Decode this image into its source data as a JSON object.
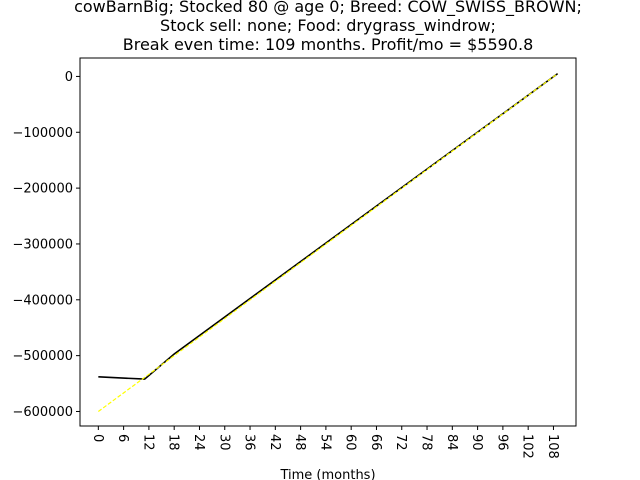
{
  "chart_data": {
    "type": "line",
    "title_lines": [
      "cowBarnBig; Stocked 80 @ age 0; Breed: COW_SWISS_BROWN;",
      "Stock sell: none; Food: drygrass_windrow;",
      "Break even time: 109 months. Profit/mo = $5590.8"
    ],
    "xlabel": "Time (months)",
    "ylabel": "",
    "xlim": [
      -4.35,
      113.35
    ],
    "ylim": [
      -626000,
      33000
    ],
    "x_ticks": [
      0,
      6,
      12,
      18,
      24,
      30,
      36,
      42,
      48,
      54,
      60,
      66,
      72,
      78,
      84,
      90,
      96,
      102,
      108
    ],
    "y_ticks": [
      0,
      -100000,
      -200000,
      -300000,
      -400000,
      -500000,
      -600000
    ],
    "y_tick_labels": [
      "0",
      "−100000",
      "−200000",
      "−300000",
      "−400000",
      "−500000",
      "−600000"
    ],
    "grid": false,
    "series": [
      {
        "color": "#000000",
        "style": "solid",
        "x": [
          0,
          11,
          18,
          109
        ],
        "y": [
          -538000,
          -542000,
          -497000,
          5000
        ]
      },
      {
        "color": "#ffff00",
        "style": "dashed",
        "x": [
          0,
          109
        ],
        "y": [
          -600000,
          5000
        ]
      }
    ]
  }
}
